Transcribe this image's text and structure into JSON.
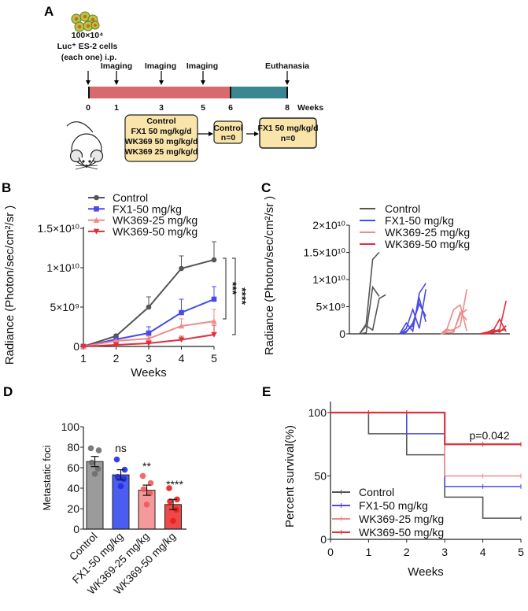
{
  "panel_a": {
    "label": "A",
    "cells_lines": [
      "100×10⁴",
      "Luc⁺ ES-2 cells",
      "(each one)  i.p."
    ],
    "events": [
      {
        "label": "Imaging",
        "week": "1"
      },
      {
        "label": "Imaging",
        "week": "3"
      },
      {
        "label": "Imaging",
        "week": "5"
      },
      {
        "label": "Euthanasia",
        "week": "8"
      }
    ],
    "ticks": [
      "0",
      "1",
      "3",
      "5",
      "6",
      "8"
    ],
    "unit": "Weeks",
    "colors": {
      "treatment": "#d76a6c",
      "followup": "#3b8791",
      "box": "#f9e4a9"
    },
    "boxes": [
      {
        "lines": [
          "Control",
          "FX1 50 mg/kg/d",
          "WK369 50 mg/kg/d",
          "WK369 25 mg/kg/d"
        ]
      },
      {
        "lines": [
          "Control",
          "n=0"
        ]
      },
      {
        "lines": [
          "FX1 50 mg/kg/d",
          "n=0"
        ]
      }
    ]
  },
  "chart_data": [
    {
      "panel": "B",
      "type": "line",
      "title": "",
      "xlabel": "Weeks",
      "ylabel": "Radiance (Photon/sec/cm²/sr )",
      "x": [
        1,
        2,
        3,
        4,
        5
      ],
      "xticks": [
        "1",
        "2",
        "3",
        "4",
        "5"
      ],
      "ylim": [
        0,
        15000000000
      ],
      "yticks": [
        {
          "value": 0,
          "label": "0"
        },
        {
          "value": 5000000000,
          "label": "5×10⁹"
        },
        {
          "value": 10000000000,
          "label": "1×10¹⁰"
        },
        {
          "value": 15000000000,
          "label": "1.5×10¹⁰"
        }
      ],
      "legend": "top-left",
      "series": [
        {
          "name": "Control",
          "color": "#555555",
          "marker": "circle",
          "values": [
            0,
            1330000000,
            5000000000,
            9900000000,
            11000000000
          ],
          "error": [
            0,
            200000000,
            1300000000,
            1600000000,
            2300000000
          ]
        },
        {
          "name": "FX1-50 mg/kg",
          "color": "#4a4ae6",
          "marker": "square",
          "values": [
            0,
            900000000,
            1700000000,
            4300000000,
            6000000000
          ],
          "error": [
            0,
            150000000,
            800000000,
            1700000000,
            1600000000
          ]
        },
        {
          "name": "WK369-25 mg/kg",
          "color": "#f08a8a",
          "marker": "triangle-up",
          "values": [
            0,
            700000000,
            1000000000,
            2600000000,
            3200000000
          ],
          "error": [
            0,
            100000000,
            300000000,
            900000000,
            1500000000
          ]
        },
        {
          "name": "WK369-50 mg/kg",
          "color": "#e0303a",
          "marker": "triangle-down",
          "values": [
            0,
            200000000,
            400000000,
            850000000,
            1500000000
          ],
          "error": [
            0,
            50000000,
            150000000,
            450000000,
            1200000000
          ]
        }
      ],
      "significance": [
        {
          "label": "***"
        },
        {
          "label": "****"
        }
      ]
    },
    {
      "panel": "C",
      "type": "line",
      "title": "",
      "xlabel": "",
      "ylabel": "Radiance (Photon/sec/cm²/sr )",
      "ylim": [
        0,
        20000000000
      ],
      "yticks": [
        {
          "value": 0,
          "label": "0"
        },
        {
          "value": 5000000000,
          "label": "5×10⁹"
        },
        {
          "value": 10000000000,
          "label": "1×10¹⁰"
        },
        {
          "value": 15000000000,
          "label": "1.5×10¹⁰"
        },
        {
          "value": 20000000000,
          "label": "2×10¹⁰"
        }
      ],
      "legend": "top-left",
      "groups": [
        {
          "name": "Control",
          "color": "#555555",
          "traces": [
            [
              0,
              1800000000,
              13700000000,
              15000000000
            ],
            [
              0,
              200000000,
              8600000000,
              6900000000
            ],
            [
              0,
              1500000000,
              700000000,
              6500000000,
              7200000000
            ]
          ]
        },
        {
          "name": "FX1-50 mg/kg",
          "color": "#4a4ae6",
          "traces": [
            [
              0,
              2000000000,
              500000000,
              7500000000,
              9300000000
            ],
            [
              0,
              1000000000,
              4500000000,
              1000000000,
              8200000000
            ],
            [
              0,
              300000000,
              2000000000,
              5500000000,
              3200000000
            ],
            [
              0,
              500000000,
              1500000000,
              6500000000,
              2200000000
            ]
          ]
        },
        {
          "name": "WK369-25 mg/kg",
          "color": "#f08a8a",
          "traces": [
            [
              0,
              1000000000,
              4500000000,
              5300000000,
              500000000
            ],
            [
              0,
              500000000,
              800000000,
              1500000000,
              8200000000
            ],
            [
              0,
              200000000,
              300000000,
              4000000000,
              2500000000
            ],
            [
              0,
              800000000,
              500000000,
              3500000000,
              4500000000
            ]
          ]
        },
        {
          "name": "WK369-50 mg/kg",
          "color": "#e0303a",
          "traces": [
            [
              0,
              100000000,
              400000000,
              800000000,
              6100000000
            ],
            [
              0,
              300000000,
              500000000,
              2700000000,
              400000000
            ],
            [
              0,
              200000000,
              800000000,
              300000000,
              1500000000
            ],
            [
              0,
              0,
              200000000,
              600000000,
              800000000
            ]
          ]
        }
      ]
    },
    {
      "panel": "D",
      "type": "bar",
      "title": "",
      "xlabel": "",
      "ylabel": "Metastatic foci",
      "categories": [
        "Control",
        "FX1-50 mg/kg",
        "WK369-25 mg/kg",
        "WK369-50 mg/kg"
      ],
      "values": [
        66,
        53,
        38,
        24
      ],
      "sem": [
        5,
        5,
        5,
        5
      ],
      "points": [
        [
          79,
          77,
          65,
          59,
          54
        ],
        [
          68,
          58,
          51,
          49,
          42
        ],
        [
          52,
          45,
          39,
          35,
          24
        ],
        [
          40,
          29,
          27,
          19,
          8
        ]
      ],
      "bar_colors": [
        "#9b9b9b",
        "#4b5cf0",
        "#f59a9a",
        "#ef4848"
      ],
      "point_colors": [
        "#6e6e6e",
        "#1f2fe0",
        "#ef5a5a",
        "#e81d1d"
      ],
      "significance": [
        "",
        "ns",
        "**",
        "****"
      ],
      "ylim": [
        0,
        100
      ],
      "yticks": [
        "0",
        "20",
        "40",
        "60",
        "80",
        "100"
      ]
    },
    {
      "panel": "E",
      "type": "line",
      "subtype": "kaplan-meier",
      "title": "",
      "xlabel": "Weeks",
      "ylabel": "Percent survival(%)",
      "xlim": [
        0,
        5
      ],
      "ylim": [
        0,
        100
      ],
      "xticks": [
        "0",
        "1",
        "2",
        "3",
        "4",
        "5"
      ],
      "yticks": [
        "0",
        "50",
        "100"
      ],
      "legend": "bottom-left",
      "annotation": "p=0.042",
      "series": [
        {
          "name": "Control",
          "color": "#555555",
          "steps": [
            [
              0,
              100
            ],
            [
              1,
              83.3
            ],
            [
              2,
              66.7
            ],
            [
              3,
              33.3
            ],
            [
              4,
              16.7
            ],
            [
              5,
              16.7
            ]
          ]
        },
        {
          "name": "FX1-50 mg/kg",
          "color": "#4a4ae6",
          "steps": [
            [
              0,
              100
            ],
            [
              2,
              83.3
            ],
            [
              3,
              41.7
            ],
            [
              5,
              41.7
            ]
          ]
        },
        {
          "name": "WK369-25 mg/kg",
          "color": "#f08a8a",
          "steps": [
            [
              0,
              100
            ],
            [
              3,
              50
            ],
            [
              5,
              50
            ]
          ]
        },
        {
          "name": "WK369-50 mg/kg",
          "color": "#e0303a",
          "steps": [
            [
              0,
              100
            ],
            [
              3,
              75
            ],
            [
              5,
              75
            ]
          ]
        }
      ]
    }
  ]
}
